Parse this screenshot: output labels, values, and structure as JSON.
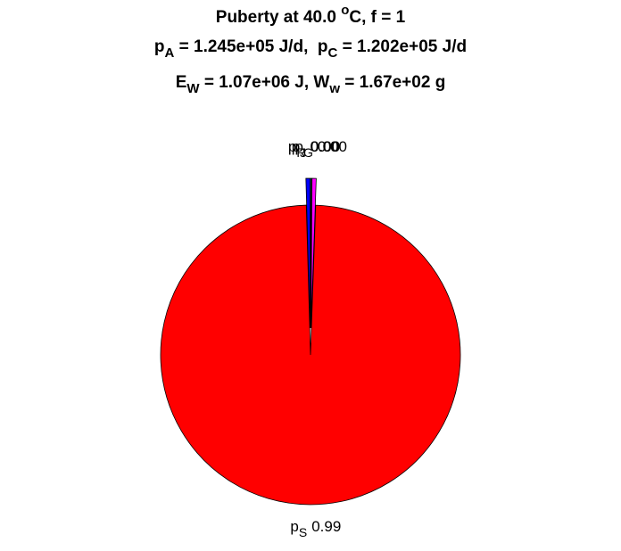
{
  "chart_data": {
    "type": "pie",
    "title_lines": [
      [
        {
          "text": "Puberty at 40.0 "
        },
        {
          "text": "o",
          "script": "sup"
        },
        {
          "text": "C, f = 1"
        }
      ],
      [
        {
          "text": "p"
        },
        {
          "text": "A",
          "script": "sub"
        },
        {
          "text": " = 1.245e+05 J/d,  p"
        },
        {
          "text": "C",
          "script": "sub"
        },
        {
          "text": " = 1.202e+05 J/d"
        }
      ],
      [
        {
          "text": "E"
        },
        {
          "text": "W",
          "script": "sub"
        },
        {
          "text": " = 1.07e+06 J, W"
        },
        {
          "text": "w",
          "script": "sub"
        },
        {
          "text": " = 1.67e+02 g"
        }
      ]
    ],
    "labels": [
      [
        {
          "text": "p"
        },
        {
          "text": "R",
          "script": "sub"
        }
      ],
      [
        {
          "text": "p"
        },
        {
          "text": "S",
          "script": "sub"
        }
      ],
      [
        {
          "text": "p"
        },
        {
          "text": "G",
          "script": "sub"
        }
      ],
      [
        {
          "text": "p"
        },
        {
          "text": "J",
          "script": "sub"
        }
      ]
    ],
    "values": [
      0.0045,
      0.99,
      0.0045,
      0.001
    ],
    "value_labels": [
      "0.00",
      "0.99",
      "0.00",
      "0.00"
    ],
    "colors": [
      "#0000ff",
      "#ff0000",
      "#ff00ff",
      "#00ffff"
    ],
    "explode": [
      true,
      false,
      true,
      true
    ]
  }
}
